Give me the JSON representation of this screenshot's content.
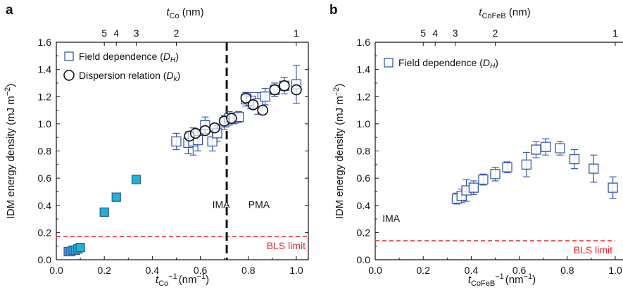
{
  "panels": {
    "a": {
      "letter": "a"
    },
    "b": {
      "letter": "b"
    }
  },
  "chart_data": [
    {
      "type": "scatter",
      "panel": "a",
      "xlabel": "tCo−1(nm−1)",
      "xlabel_main": "t",
      "xlabel_sub": "Co",
      "xlabel_sup": "−1",
      "xlabel_unit": "(nm",
      "xlabel_unit_sup": "−1",
      "xlabel_close": ")",
      "top_xlabel_main": "t",
      "top_xlabel_sub": "Co",
      "top_xlabel_unit": " (nm)",
      "ylabel_main": "IDM energy density (mJ m",
      "ylabel_sup": "−2",
      "ylabel_close": ")",
      "xlim": [
        0.0,
        1.05
      ],
      "ylim": [
        0.0,
        1.6
      ],
      "xticks": [
        "0.0",
        "0.2",
        "0.4",
        "0.6",
        "0.8",
        "1.0"
      ],
      "xtick_values": [
        0.0,
        0.2,
        0.4,
        0.6,
        0.8,
        1.0
      ],
      "yticks": [
        "0.0",
        "0.2",
        "0.4",
        "0.6",
        "0.8",
        "1.0",
        "1.2",
        "1.4",
        "1.6"
      ],
      "ytick_values": [
        0.0,
        0.2,
        0.4,
        0.6,
        0.8,
        1.0,
        1.2,
        1.4,
        1.6
      ],
      "top_ticks": [
        {
          "label": "5",
          "x": 0.2
        },
        {
          "label": "4",
          "x": 0.25
        },
        {
          "label": "3",
          "x": 0.3333
        },
        {
          "label": "2",
          "x": 0.5
        },
        {
          "label": "1",
          "x": 1.0
        }
      ],
      "legend": [
        {
          "label": "Field dependence (",
          "italic": "D",
          "sub": "H",
          "close": ")",
          "marker": "square"
        },
        {
          "label": "Dispersion relation (",
          "italic": "D",
          "sub": "k",
          "close": ")",
          "marker": "circle"
        }
      ],
      "boundary_x": 0.71,
      "region_labels": [
        {
          "text": "IMA",
          "x": 0.65,
          "y": 0.38
        },
        {
          "text": "PMA",
          "x": 0.8,
          "y": 0.38
        }
      ],
      "bls_limit": {
        "y": 0.17,
        "label": "BLS limit"
      },
      "series": [
        {
          "name": "Field dependence (DH)",
          "marker": "square",
          "filled_points": [
            {
              "x": 0.05,
              "y": 0.06,
              "err": 0.015
            },
            {
              "x": 0.06,
              "y": 0.06,
              "err": 0.015
            },
            {
              "x": 0.07,
              "y": 0.07,
              "err": 0.02
            },
            {
              "x": 0.08,
              "y": 0.07,
              "err": 0.02
            },
            {
              "x": 0.09,
              "y": 0.08,
              "err": 0.02
            },
            {
              "x": 0.1,
              "y": 0.09,
              "err": 0.02
            },
            {
              "x": 0.2,
              "y": 0.35,
              "err": 0.03
            },
            {
              "x": 0.25,
              "y": 0.46,
              "err": 0.02
            },
            {
              "x": 0.333,
              "y": 0.59,
              "err": 0.03
            }
          ],
          "open_points": [
            {
              "x": 0.5,
              "y": 0.87,
              "err": 0.06
            },
            {
              "x": 0.55,
              "y": 0.86,
              "err": 0.08
            },
            {
              "x": 0.57,
              "y": 0.87,
              "err": 0.1
            },
            {
              "x": 0.59,
              "y": 0.88,
              "err": 0.08
            },
            {
              "x": 0.62,
              "y": 0.99,
              "err": 0.06
            },
            {
              "x": 0.65,
              "y": 0.87,
              "err": 0.07
            },
            {
              "x": 0.67,
              "y": 0.93,
              "err": 0.06
            },
            {
              "x": 0.7,
              "y": 1.01,
              "err": 0.05
            },
            {
              "x": 0.72,
              "y": 1.04,
              "err": 0.05
            },
            {
              "x": 0.74,
              "y": 1.04,
              "err": 0.04
            },
            {
              "x": 0.76,
              "y": 1.05,
              "err": 0.04
            },
            {
              "x": 0.79,
              "y": 1.18,
              "err": 0.05
            },
            {
              "x": 0.81,
              "y": 1.17,
              "err": 0.06
            },
            {
              "x": 0.84,
              "y": 1.15,
              "err": 0.08
            },
            {
              "x": 0.87,
              "y": 1.2,
              "err": 0.06
            },
            {
              "x": 0.91,
              "y": 1.25,
              "err": 0.05
            },
            {
              "x": 0.95,
              "y": 1.28,
              "err": 0.06
            },
            {
              "x": 1.0,
              "y": 1.29,
              "err": 0.14
            }
          ]
        },
        {
          "name": "Dispersion relation (Dk)",
          "marker": "circle",
          "points": [
            {
              "x": 0.555,
              "y": 0.91
            },
            {
              "x": 0.58,
              "y": 0.93
            },
            {
              "x": 0.62,
              "y": 0.95
            },
            {
              "x": 0.66,
              "y": 0.97
            },
            {
              "x": 0.7,
              "y": 1.02
            },
            {
              "x": 0.73,
              "y": 1.04
            },
            {
              "x": 0.79,
              "y": 1.19
            },
            {
              "x": 0.82,
              "y": 1.14
            },
            {
              "x": 0.86,
              "y": 1.1
            },
            {
              "x": 0.91,
              "y": 1.25
            },
            {
              "x": 0.95,
              "y": 1.28
            },
            {
              "x": 1.0,
              "y": 1.25
            }
          ]
        }
      ],
      "colors": {
        "blue": "#3b5aa8",
        "teal": "#1fb5c9",
        "red": "#e8262b",
        "black": "#111111"
      }
    },
    {
      "type": "scatter",
      "panel": "b",
      "xlabel_main": "t",
      "xlabel_sub": "CoFeB",
      "xlabel_sup": "−1",
      "xlabel_unit": "(nm",
      "xlabel_unit_sup": "−1",
      "xlabel_close": ")",
      "top_xlabel_main": "t",
      "top_xlabel_sub": "CoFeB",
      "top_xlabel_unit": " (nm)",
      "ylabel_main": "IDM energy density (mJ m",
      "ylabel_sup": "−2",
      "ylabel_close": ")",
      "xlim": [
        0.0,
        1.0
      ],
      "ylim": [
        0.0,
        1.6
      ],
      "xticks": [
        "0.0",
        "0.2",
        "0.4",
        "0.6",
        "0.8",
        "1.0"
      ],
      "xtick_values": [
        0.0,
        0.2,
        0.4,
        0.6,
        0.8,
        1.0
      ],
      "yticks": [
        "0.0",
        "0.2",
        "0.4",
        "0.6",
        "0.8",
        "1.0",
        "1.2",
        "1.4",
        "1.6"
      ],
      "ytick_values": [
        0.0,
        0.2,
        0.4,
        0.6,
        0.8,
        1.0,
        1.2,
        1.4,
        1.6
      ],
      "top_ticks": [
        {
          "label": "5",
          "x": 0.2
        },
        {
          "label": "4",
          "x": 0.25
        },
        {
          "label": "3",
          "x": 0.3333
        },
        {
          "label": "2",
          "x": 0.5
        },
        {
          "label": "1",
          "x": 1.0
        }
      ],
      "legend": [
        {
          "label": "Field dependence (",
          "italic": "D",
          "sub": "H",
          "close": ")",
          "marker": "square"
        }
      ],
      "region_labels": [
        {
          "text": "IMA",
          "x": 0.03,
          "y": 0.28
        }
      ],
      "bls_limit": {
        "y": 0.14,
        "label": "BLS limit"
      },
      "series": [
        {
          "name": "Field dependence (DH)",
          "marker": "square",
          "open_points": [
            {
              "x": 0.34,
              "y": 0.45,
              "err": 0.04
            },
            {
              "x": 0.36,
              "y": 0.47,
              "err": 0.05
            },
            {
              "x": 0.38,
              "y": 0.51,
              "err": 0.08
            },
            {
              "x": 0.41,
              "y": 0.53,
              "err": 0.05
            },
            {
              "x": 0.45,
              "y": 0.59,
              "err": 0.04
            },
            {
              "x": 0.5,
              "y": 0.63,
              "err": 0.05
            },
            {
              "x": 0.55,
              "y": 0.68,
              "err": 0.04
            },
            {
              "x": 0.63,
              "y": 0.7,
              "err": 0.09
            },
            {
              "x": 0.67,
              "y": 0.81,
              "err": 0.06
            },
            {
              "x": 0.71,
              "y": 0.83,
              "err": 0.06
            },
            {
              "x": 0.77,
              "y": 0.82,
              "err": 0.05
            },
            {
              "x": 0.83,
              "y": 0.74,
              "err": 0.07
            },
            {
              "x": 0.91,
              "y": 0.67,
              "err": 0.1
            },
            {
              "x": 0.99,
              "y": 0.53,
              "err": 0.08
            }
          ]
        }
      ],
      "colors": {
        "blue": "#3b5aa8",
        "red": "#e8262b",
        "black": "#111111"
      }
    }
  ]
}
